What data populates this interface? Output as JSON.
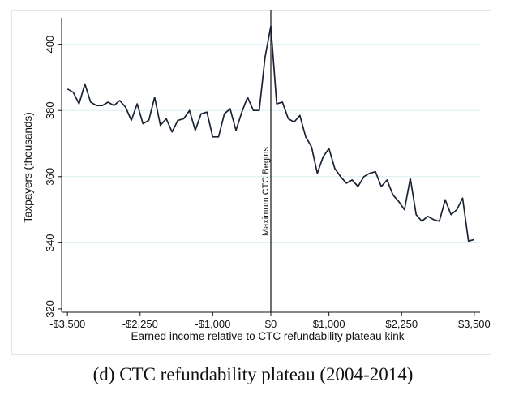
{
  "caption": "(d) CTC refundability plateau (2004-2014)",
  "chart_data": {
    "type": "line",
    "title": "",
    "xlabel": "Earned income relative to CTC refundability plateau kink",
    "ylabel": "Taxpayers (thousands)",
    "xlim": [
      -3600,
      3600
    ],
    "ylim": [
      319,
      408
    ],
    "x_ticks": [
      -3500,
      -2250,
      -1000,
      0,
      1000,
      2250,
      3500
    ],
    "x_tick_labels": [
      "-$3,500",
      "-$2,250",
      "-$1,000",
      "$0",
      "$1,000",
      "$2,250",
      "$3,500"
    ],
    "y_ticks": [
      320,
      340,
      360,
      380,
      400
    ],
    "y_tick_labels": [
      "320",
      "340",
      "360",
      "380",
      "400"
    ],
    "grid": "horizontal",
    "line_color": "#1a2233",
    "grid_color": "#dceeed",
    "annotation": {
      "label": "Maximum CTC Begins",
      "x": 0
    },
    "series": [
      {
        "name": "Taxpayers",
        "x": [
          -3500,
          -3400,
          -3300,
          -3200,
          -3100,
          -3000,
          -2900,
          -2800,
          -2700,
          -2600,
          -2500,
          -2400,
          -2300,
          -2200,
          -2100,
          -2000,
          -1900,
          -1800,
          -1700,
          -1600,
          -1500,
          -1400,
          -1300,
          -1200,
          -1100,
          -1000,
          -900,
          -800,
          -700,
          -600,
          -500,
          -400,
          -300,
          -200,
          -100,
          0,
          100,
          200,
          300,
          400,
          500,
          600,
          700,
          800,
          900,
          1000,
          1100,
          1200,
          1300,
          1400,
          1500,
          1600,
          1700,
          1800,
          1900,
          2000,
          2100,
          2200,
          2300,
          2400,
          2500,
          2600,
          2700,
          2800,
          2900,
          3000,
          3100,
          3200,
          3300,
          3400,
          3500
        ],
        "values": [
          386.5,
          385.5,
          382,
          388,
          382.5,
          381.5,
          381.5,
          382.5,
          381.5,
          383,
          381,
          377,
          382,
          376,
          377,
          384,
          375.5,
          377.5,
          373.5,
          377,
          377.5,
          380,
          374,
          379,
          379.5,
          372,
          372,
          379,
          380.5,
          374,
          379.5,
          384,
          380,
          380,
          396,
          405.5,
          382,
          382.5,
          377.5,
          376.5,
          378.5,
          372,
          369,
          361,
          366,
          368.5,
          362.5,
          360,
          358,
          359,
          357,
          360,
          361,
          361.5,
          357,
          359,
          354.5,
          352.5,
          350,
          359.5,
          348.5,
          346.5,
          348,
          347,
          346.5,
          353,
          348.5,
          350,
          353.5,
          340.5,
          341
        ]
      }
    ]
  }
}
